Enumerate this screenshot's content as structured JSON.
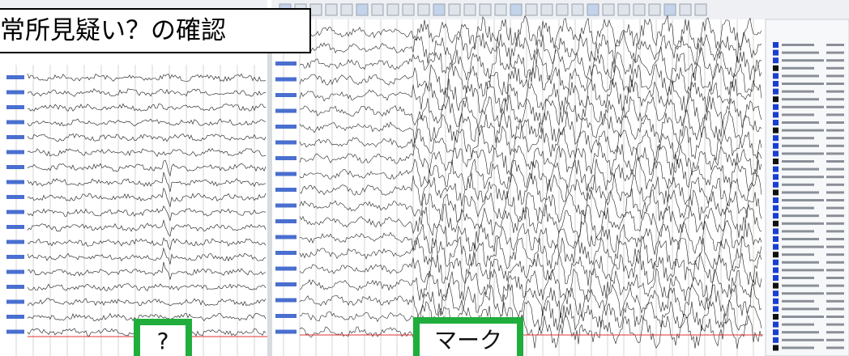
{
  "title": "常所見疑い？の確認",
  "callouts": {
    "left": "?",
    "right": "マーク"
  }
}
